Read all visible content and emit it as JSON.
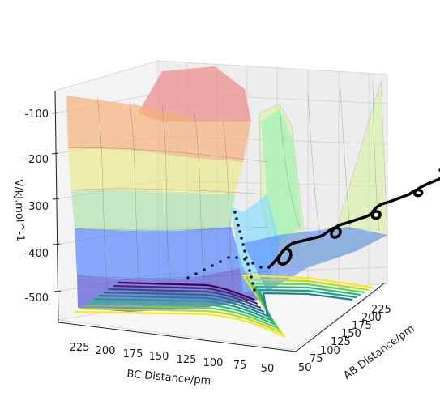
{
  "chart_data": {
    "type": "surface-3d",
    "title": "",
    "xlabel": "AB Distance/pm",
    "ylabel": "BC Distance/pm",
    "zlabel": "V/kJ.mol^-1",
    "x_ticks": [
      "50",
      "75",
      "100",
      "125",
      "150",
      "175",
      "200",
      "225"
    ],
    "y_ticks": [
      "225",
      "200",
      "175",
      "150",
      "125",
      "100",
      "75",
      "50"
    ],
    "z_ticks": [
      "-100",
      "-200",
      "-300",
      "-400",
      "-500"
    ],
    "zlim": [
      -560,
      -60
    ],
    "grid": true,
    "colormap_surface": "jet",
    "colormap_contour": "viridis",
    "surface_bands": [
      {
        "z_from": -560,
        "z_to": -460,
        "color": "#3b3bd6"
      },
      {
        "z_from": -460,
        "z_to": -360,
        "color": "#3f74ff"
      },
      {
        "z_from": -360,
        "z_to": -260,
        "color": "#9fdc9c"
      },
      {
        "z_from": -260,
        "z_to": -180,
        "color": "#e9e77c"
      },
      {
        "z_from": -180,
        "z_to": -120,
        "color": "#f5b07a"
      },
      {
        "z_from": -120,
        "z_to": -60,
        "color": "#ee8f8f"
      }
    ],
    "trajectory_color": "#000000",
    "trajectory_description": "reaction trajectory dots through the saddle point"
  }
}
